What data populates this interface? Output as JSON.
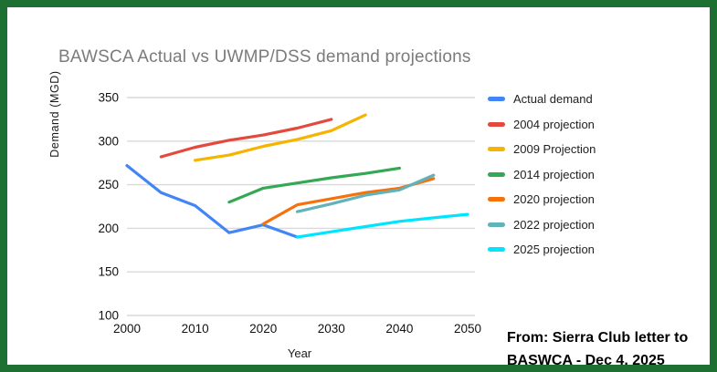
{
  "attribution": {
    "line1": "From: Sierra Club letter to",
    "line2": "BASWCA - Dec 4, 2025"
  },
  "colors": {
    "frame_border": "#1e6f32",
    "title_text": "#7b7b7b",
    "grid_line": "#d9d9d9",
    "tick_text": "#111111",
    "legend_text": "#212121"
  },
  "chart_data": {
    "type": "line",
    "title": "BAWSCA Actual vs UWMP/DSS demand projections",
    "xlabel": "Year",
    "ylabel": "Demand (MGD)",
    "xlim": [
      2000,
      2050
    ],
    "ylim": [
      100,
      350
    ],
    "x_ticks": [
      2000,
      2010,
      2020,
      2030,
      2040,
      2050
    ],
    "y_ticks": [
      100,
      150,
      200,
      250,
      300,
      350
    ],
    "grid": true,
    "legend_position": "right",
    "series": [
      {
        "name": "Actual demand",
        "color": "#4285f4",
        "points": [
          [
            2000,
            272
          ],
          [
            2005,
            241
          ],
          [
            2010,
            226
          ],
          [
            2015,
            195
          ],
          [
            2020,
            204
          ],
          [
            2025,
            190
          ]
        ]
      },
      {
        "name": "2004 projection",
        "color": "#e3493d",
        "points": [
          [
            2005,
            282
          ],
          [
            2010,
            293
          ],
          [
            2015,
            301
          ],
          [
            2020,
            307
          ],
          [
            2025,
            315
          ],
          [
            2030,
            325
          ]
        ]
      },
      {
        "name": "2009 Projection",
        "color": "#f5b400",
        "points": [
          [
            2010,
            278
          ],
          [
            2015,
            284
          ],
          [
            2020,
            294
          ],
          [
            2025,
            302
          ],
          [
            2030,
            312
          ],
          [
            2035,
            330
          ]
        ]
      },
      {
        "name": "2014 projection",
        "color": "#34a853",
        "points": [
          [
            2015,
            230
          ],
          [
            2020,
            246
          ],
          [
            2025,
            252
          ],
          [
            2030,
            258
          ],
          [
            2035,
            263
          ],
          [
            2040,
            269
          ]
        ]
      },
      {
        "name": "2020 projection",
        "color": "#f6710b",
        "points": [
          [
            2020,
            205
          ],
          [
            2025,
            227
          ],
          [
            2030,
            234
          ],
          [
            2035,
            241
          ],
          [
            2040,
            246
          ],
          [
            2045,
            257
          ]
        ]
      },
      {
        "name": "2022 projection",
        "color": "#62b2ba",
        "points": [
          [
            2025,
            219
          ],
          [
            2030,
            228
          ],
          [
            2035,
            238
          ],
          [
            2040,
            244
          ],
          [
            2045,
            261
          ]
        ]
      },
      {
        "name": "2025 projection",
        "color": "#00e5ff",
        "points": [
          [
            2025,
            190
          ],
          [
            2030,
            196
          ],
          [
            2035,
            202
          ],
          [
            2040,
            208
          ],
          [
            2045,
            212
          ],
          [
            2050,
            216
          ]
        ]
      }
    ]
  }
}
